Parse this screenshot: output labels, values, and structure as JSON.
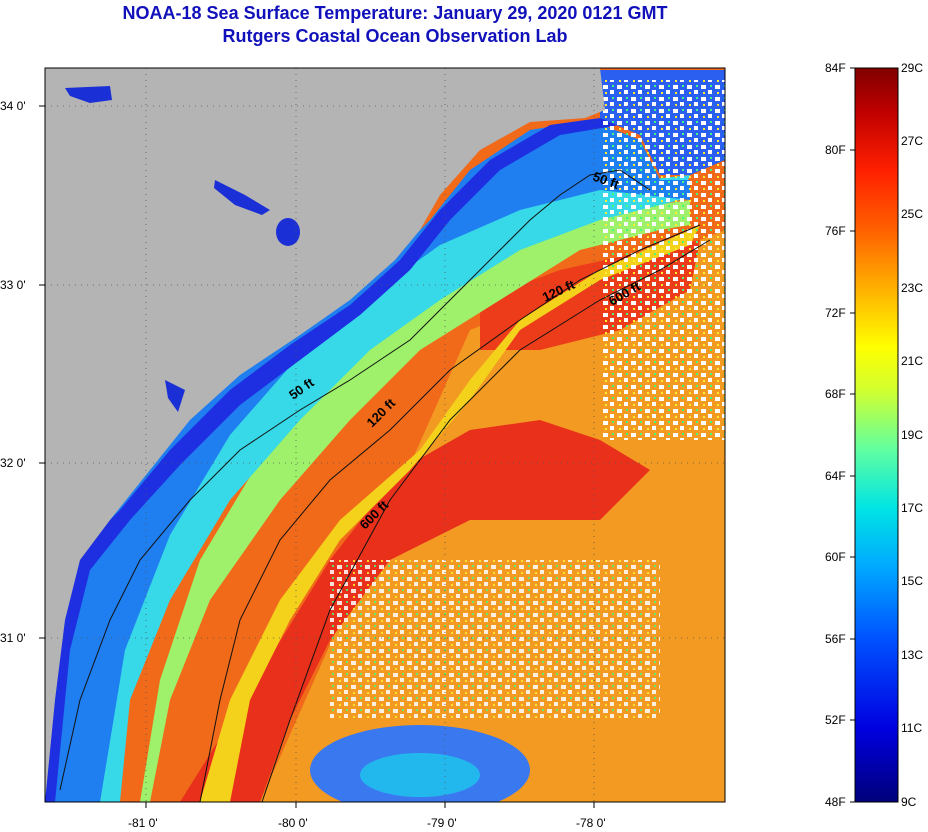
{
  "title": {
    "line1": "NOAA-18 Sea Surface Temperature:  January 29, 2020 0121 GMT",
    "line2": "Rutgers Coastal Ocean Observation Lab"
  },
  "map": {
    "longitude_ticks": [
      "-81 0'",
      "-80 0'",
      "-79 0'",
      "-78 0'"
    ],
    "latitude_ticks": [
      "34 0'",
      "33 0'",
      "32 0'",
      "31 0'"
    ],
    "isobath_labels": [
      "50 ft",
      "120 ft",
      "600 ft",
      "50 ft",
      "120 ft",
      "600 ft"
    ],
    "colors": {
      "land": "#b4b4b4",
      "clouds": "#ffffff",
      "cold": "#1a2fd6",
      "warm": "#e8401a"
    }
  },
  "colorbar": {
    "fahrenheit_labels": [
      "84F",
      "80F",
      "76F",
      "72F",
      "68F",
      "64F",
      "60F",
      "56F",
      "52F",
      "48F"
    ],
    "celsius_labels": [
      "29C",
      "27C",
      "25C",
      "23C",
      "21C",
      "19C",
      "17C",
      "15C",
      "13C",
      "11C",
      "9C"
    ],
    "range_f": [
      48,
      84
    ],
    "range_c": [
      9,
      29
    ]
  }
}
